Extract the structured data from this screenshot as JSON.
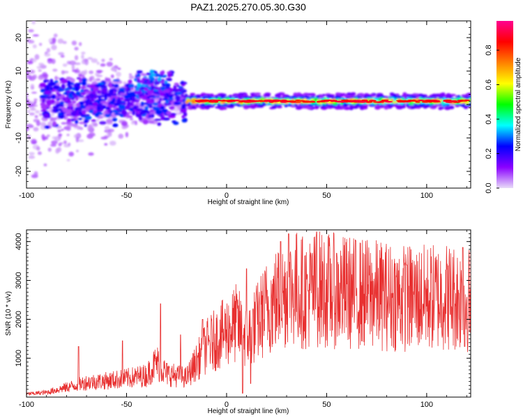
{
  "title": "PAZ1.2025.270.05.30.G30",
  "chart_data": [
    {
      "type": "heatmap",
      "xlabel": "Height of straight line (km)",
      "ylabel": "Frequency (Hz)",
      "xlim": [
        -100,
        122
      ],
      "ylim": [
        -25,
        25
      ],
      "xticks": [
        "-100",
        "-50",
        "0",
        "50",
        "100"
      ],
      "xtick_values": [
        -100,
        -50,
        0,
        50,
        100
      ],
      "yticks": [
        "-20",
        "-10",
        "0",
        "10",
        "20"
      ],
      "ytick_values": [
        -20,
        -10,
        0,
        10,
        20
      ],
      "colorbar": {
        "label": "Normalized spectral amplitude",
        "range": [
          0,
          0.97
        ],
        "ticks": [
          "0.0",
          "0.2",
          "0.4",
          "0.6",
          "0.8"
        ],
        "tick_values": [
          0,
          0.2,
          0.4,
          0.6,
          0.8
        ],
        "colors": [
          "#e8dcf8",
          "#8a00ff",
          "#0000ff",
          "#00ffff",
          "#00ff00",
          "#ffff00",
          "#ff8000",
          "#ff0000",
          "#ff0090"
        ]
      },
      "description_series": [
        {
          "name": "signal ridge",
          "x_start": -20,
          "x_end": 122,
          "frequency": 1,
          "amplitude_max": 0.97
        },
        {
          "name": "noisy region",
          "x_start": -100,
          "x_end": -20,
          "frequency_center": 1,
          "amplitude_max": 0.35
        }
      ]
    },
    {
      "type": "line",
      "xlabel": "Height of straight line (km)",
      "ylabel": "SNR (10 * v/v)",
      "xlim": [
        -100,
        122
      ],
      "ylim": [
        0,
        4300
      ],
      "xticks": [
        "-100",
        "-50",
        "0",
        "50",
        "100"
      ],
      "xtick_values": [
        -100,
        -50,
        0,
        50,
        100
      ],
      "yticks": [
        "1000",
        "2000",
        "3000",
        "4000"
      ],
      "ytick_values": [
        1000,
        2000,
        3000,
        4000
      ],
      "line_color": "#e83030",
      "trend": {
        "x": [
          -100,
          -90,
          -80,
          -70,
          -60,
          -50,
          -40,
          -35,
          -30,
          -20,
          -15,
          -10,
          -5,
          0,
          5,
          10,
          15,
          20,
          25,
          30,
          35,
          40,
          45,
          50,
          60,
          70,
          80,
          90,
          100,
          110,
          122
        ],
        "y": [
          80,
          120,
          250,
          380,
          420,
          480,
          560,
          900,
          600,
          500,
          900,
          1300,
          1500,
          1700,
          1900,
          1500,
          1900,
          2300,
          2500,
          2700,
          2800,
          2650,
          2800,
          2750,
          2700,
          2650,
          2600,
          2550,
          2550,
          2600,
          2500
        ]
      },
      "spikes": [
        {
          "x": -74,
          "y": 1300
        },
        {
          "x": -52,
          "y": 1450
        },
        {
          "x": -33,
          "y": 2400
        },
        {
          "x": -23,
          "y": 1600
        },
        {
          "x": -12,
          "y": 2000
        },
        {
          "x": 10,
          "y": 3300
        },
        {
          "x": 27,
          "y": 4000
        },
        {
          "x": 31,
          "y": 4200
        },
        {
          "x": 45,
          "y": 4250
        },
        {
          "x": 55,
          "y": 3700
        },
        {
          "x": 90,
          "y": 3400
        },
        {
          "x": 118,
          "y": 3850
        }
      ],
      "dips": [
        {
          "x": 8,
          "y": 100
        },
        {
          "x": 12,
          "y": 350
        },
        {
          "x": 119,
          "y": 1300
        }
      ]
    }
  ]
}
